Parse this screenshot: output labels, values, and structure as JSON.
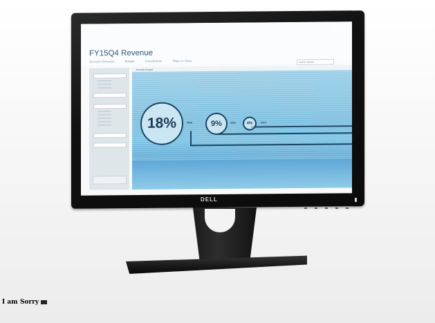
{
  "screen": {
    "title": "FY15Q4 Revenue",
    "tabs": [
      "Account Overview",
      "Budget",
      "Investments",
      "Ways to Save"
    ],
    "search_placeholder": "search entries",
    "panel_header": "Monthly Budget",
    "metrics": [
      {
        "value": "18%",
        "year": "2016"
      },
      {
        "value": "9%",
        "year": "2015"
      },
      {
        "value": "4%",
        "year": "2014"
      }
    ]
  },
  "monitor": {
    "brand": "DELL"
  },
  "caption": {
    "text": "I am Sorry"
  },
  "colors": {
    "accent": "#1a4563",
    "title": "#34577a",
    "bezel": "#111111"
  }
}
